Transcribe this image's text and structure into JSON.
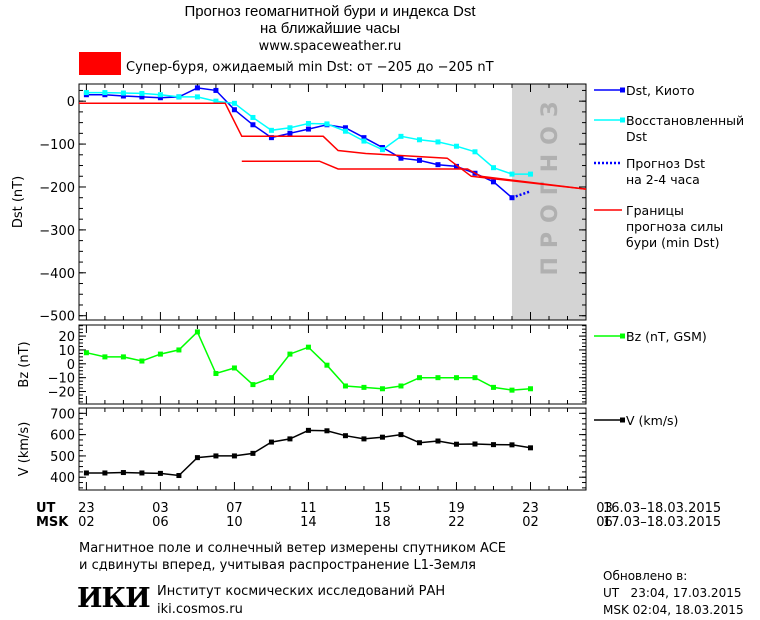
{
  "header": {
    "title_line1": "Прогноз геомагнитной бури и индекса Dst",
    "title_line2": "на ближайшие часы",
    "url": "www.spaceweather.ru",
    "storm_label": "Супер-буря, ожидаемый min Dst: от −205 до −205 nT",
    "storm_color": "#ff0000"
  },
  "chart_data": [
    {
      "type": "line",
      "panel": "dst",
      "ylabel": "Dst (nT)",
      "ylim": [
        -510,
        40
      ],
      "yticks": [
        0,
        -100,
        -200,
        -300,
        -400,
        -500
      ],
      "forecast_band": {
        "x_from": 23.0,
        "x_to": 27.0,
        "label": "ПРОГНОЗ",
        "color": "#d4d4d4"
      },
      "series": [
        {
          "name": "Dst, Киото",
          "color": "#0000ff",
          "marker": "square",
          "style": "solid",
          "x": [
            0,
            1,
            2,
            3,
            4,
            5,
            6,
            7,
            8,
            9,
            10,
            11,
            12,
            13,
            14,
            15,
            16,
            17,
            18,
            19,
            20,
            21,
            22,
            23
          ],
          "y": [
            15,
            15,
            12,
            10,
            8,
            10,
            31,
            25,
            -20,
            -55,
            -85,
            -75,
            -65,
            -55,
            -62,
            -85,
            -108,
            -133,
            -138,
            -148,
            -152,
            -168,
            -188,
            -225
          ]
        },
        {
          "name": "Восстановленный Dst",
          "color": "#00ffff",
          "marker": "square",
          "style": "solid",
          "x": [
            0,
            1,
            2,
            3,
            4,
            5,
            6,
            7,
            8,
            9,
            10,
            11,
            12,
            13,
            14,
            15,
            16,
            17,
            18,
            19,
            20,
            21,
            22,
            23,
            24
          ],
          "y": [
            20,
            20,
            19,
            18,
            15,
            10,
            10,
            0,
            -5,
            -38,
            -68,
            -62,
            -52,
            -53,
            -70,
            -93,
            -113,
            -82,
            -90,
            -95,
            -105,
            -118,
            -155,
            -170,
            -170
          ]
        },
        {
          "name": "Прогноз Dst на 2-4 часа",
          "color": "#0000ff",
          "marker": "none",
          "style": "dotted",
          "x": [
            23,
            24
          ],
          "y": [
            -225,
            -210
          ]
        },
        {
          "name": "Границы прогноза силы бури (min Dst)",
          "color": "#ff0000",
          "marker": "none",
          "style": "solid",
          "x": [
            -0.4,
            7.5,
            8.4,
            12.8,
            13.6,
            15.1,
            19.5,
            20.8,
            27
          ],
          "y": [
            -5,
            -5,
            -82,
            -82,
            -115,
            -122,
            -133,
            -175,
            -205
          ]
        },
        {
          "name": "Границы прогноза силы бури (min Dst)",
          "color": "#ff0000",
          "marker": "none",
          "style": "solid",
          "x": [
            8.4,
            12.6,
            13.6,
            20.6,
            21.3,
            27
          ],
          "y": [
            -140,
            -140,
            -158,
            -158,
            -175,
            -205
          ]
        }
      ]
    },
    {
      "type": "line",
      "panel": "bz",
      "ylabel": "Bz (nT)",
      "ylim": [
        -29,
        28
      ],
      "yticks": [
        20,
        10,
        0,
        -10,
        -20
      ],
      "series": [
        {
          "name": "Bz (nT, GSM)",
          "color": "#00ff00",
          "marker": "square",
          "style": "solid",
          "x": [
            0,
            1,
            2,
            3,
            4,
            5,
            6,
            7,
            8,
            9,
            10,
            11,
            12,
            13,
            14,
            15,
            16,
            17,
            18,
            19,
            20,
            21,
            22,
            23,
            24
          ],
          "y": [
            8,
            5,
            5,
            2,
            7,
            10,
            23,
            -7,
            -3,
            -15,
            -10,
            7,
            12,
            -1,
            -16,
            -17,
            -18,
            -16,
            -10,
            -10,
            -10,
            -10,
            -17,
            -19,
            -18
          ]
        }
      ]
    },
    {
      "type": "line",
      "panel": "v",
      "ylabel": "V (km/s)",
      "ylim": [
        340,
        725
      ],
      "yticks": [
        700,
        600,
        500,
        400
      ],
      "series": [
        {
          "name": "V (km/s)",
          "color": "#000000",
          "marker": "square",
          "style": "solid",
          "x": [
            0,
            1,
            2,
            3,
            4,
            5,
            6,
            7,
            8,
            9,
            10,
            11,
            12,
            13,
            14,
            15,
            16,
            17,
            18,
            19,
            20,
            21,
            22,
            23,
            24
          ],
          "y": [
            420,
            420,
            422,
            420,
            418,
            408,
            492,
            500,
            500,
            512,
            565,
            580,
            620,
            618,
            595,
            580,
            588,
            600,
            562,
            570,
            555,
            556,
            553,
            552,
            538
          ]
        }
      ]
    }
  ],
  "axis_x": {
    "ut_label": "UT",
    "msk_label": "MSK",
    "ut_ticks": [
      "23",
      "03",
      "07",
      "11",
      "15",
      "19",
      "23",
      "03"
    ],
    "msk_ticks": [
      "02",
      "06",
      "10",
      "14",
      "18",
      "22",
      "02",
      "06"
    ],
    "ut_range": "16.03–18.03.2015",
    "msk_range": "17.03–18.03.2015"
  },
  "footer": {
    "note_line1": "Магнитное поле и солнечный ветер измерены спутником ACE",
    "note_line2": "и сдвинуты вперед, учитывая распространение L1-Земля",
    "logo_text": "ИКИ",
    "institute": "Институт космических исследований РАН",
    "site": "iki.cosmos.ru",
    "updated_label": "Обновлено в:",
    "updated_ut": "UT   23:04, 17.03.2015",
    "updated_msk": "MSK 02:04, 18.03.2015"
  }
}
